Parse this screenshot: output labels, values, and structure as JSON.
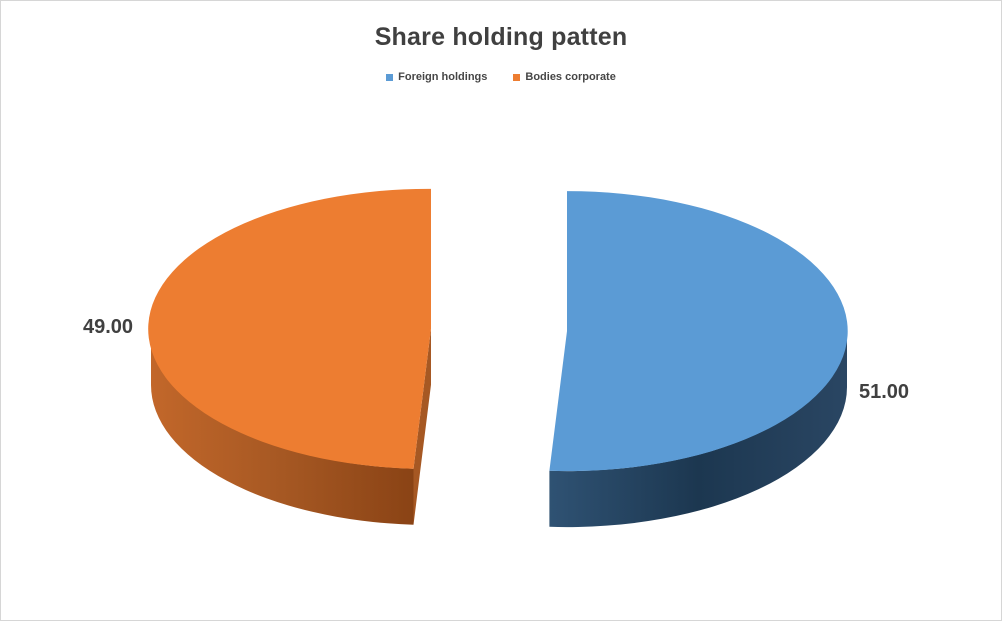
{
  "chart_data": {
    "type": "pie",
    "style": "3d-exploded",
    "title": "Share holding patten",
    "categories": [
      "Foreign holdings",
      "Bodies corporate"
    ],
    "values": [
      51,
      49
    ],
    "data_labels": [
      "51.00",
      "49.00"
    ],
    "colors": [
      "#5B9BD5",
      "#ED7D31"
    ],
    "side_gradients": [
      [
        "#2F5273",
        "#1C3750",
        "#2A4663"
      ],
      [
        "#C2672A",
        "#A65823",
        "#8A4315"
      ]
    ],
    "rotation_start_deg": 0,
    "legend": {
      "position": "top",
      "entries": [
        "Foreign holdings",
        "Bodies corporate"
      ]
    },
    "title_color": "#404040",
    "data_label_color": "#404040",
    "legend_text_color": "#464646",
    "background": "#FFFFFF",
    "border_color": "#D6D6D6"
  }
}
